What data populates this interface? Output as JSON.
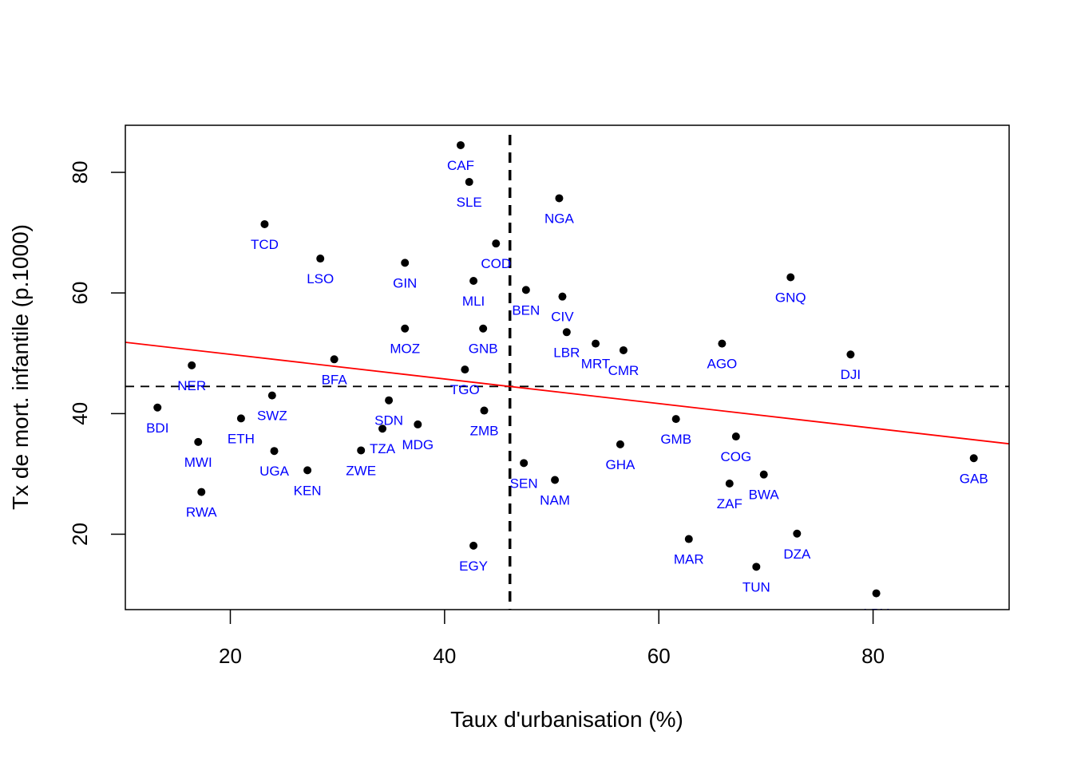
{
  "chart_data": {
    "type": "scatter",
    "title": "",
    "xlabel": "Taux d'urbanisation (%)",
    "ylabel": "Tx de mort. infantile (p.1000)",
    "xlim": [
      10.2,
      92.7
    ],
    "ylim": [
      7.5,
      87.8
    ],
    "xticks": [
      20,
      40,
      60,
      80
    ],
    "yticks": [
      20,
      40,
      60,
      80
    ],
    "grid": false,
    "colors": {
      "points": "#000000",
      "labels": "#0000ff",
      "regression": "#ff0000",
      "reference": "#000000"
    },
    "reference_lines": {
      "x_mean": 46.1,
      "y_mean": 44.5
    },
    "regression_line": {
      "intercept": 53.9,
      "slope": -0.204
    },
    "points": [
      {
        "label": "CAF",
        "x": 41.5,
        "y": 84.5
      },
      {
        "label": "SLE",
        "x": 42.3,
        "y": 78.4
      },
      {
        "label": "NGA",
        "x": 50.7,
        "y": 75.7
      },
      {
        "label": "TCD",
        "x": 23.2,
        "y": 71.4
      },
      {
        "label": "COD",
        "x": 44.8,
        "y": 68.2
      },
      {
        "label": "LSO",
        "x": 28.4,
        "y": 65.7
      },
      {
        "label": "GIN",
        "x": 36.3,
        "y": 65.0
      },
      {
        "label": "GNQ",
        "x": 72.3,
        "y": 62.6
      },
      {
        "label": "MLI",
        "x": 42.7,
        "y": 62.0
      },
      {
        "label": "BEN",
        "x": 47.6,
        "y": 60.5
      },
      {
        "label": "CIV",
        "x": 51.0,
        "y": 59.4
      },
      {
        "label": "MOZ",
        "x": 36.3,
        "y": 54.1
      },
      {
        "label": "GNB",
        "x": 43.6,
        "y": 54.1
      },
      {
        "label": "LBR",
        "x": 51.4,
        "y": 53.5
      },
      {
        "label": "MRT",
        "x": 54.1,
        "y": 51.6
      },
      {
        "label": "AGO",
        "x": 65.9,
        "y": 51.6
      },
      {
        "label": "CMR",
        "x": 56.7,
        "y": 50.5
      },
      {
        "label": "DJI",
        "x": 77.9,
        "y": 49.8
      },
      {
        "label": "BFA",
        "x": 29.7,
        "y": 49.0
      },
      {
        "label": "NER",
        "x": 16.4,
        "y": 48.0
      },
      {
        "label": "TGO",
        "x": 41.9,
        "y": 47.3
      },
      {
        "label": "SWZ",
        "x": 23.9,
        "y": 43.0
      },
      {
        "label": "SDN",
        "x": 34.8,
        "y": 42.2
      },
      {
        "label": "BDI",
        "x": 13.2,
        "y": 41.0
      },
      {
        "label": "ZMB",
        "x": 43.7,
        "y": 40.5
      },
      {
        "label": "ETH",
        "x": 21.0,
        "y": 39.2
      },
      {
        "label": "GMB",
        "x": 61.6,
        "y": 39.1
      },
      {
        "label": "MDG",
        "x": 37.5,
        "y": 38.2
      },
      {
        "label": "TZA",
        "x": 34.2,
        "y": 37.5
      },
      {
        "label": "COG",
        "x": 67.2,
        "y": 36.2
      },
      {
        "label": "MWI",
        "x": 17.0,
        "y": 35.3
      },
      {
        "label": "GHA",
        "x": 56.4,
        "y": 34.9
      },
      {
        "label": "UGA",
        "x": 24.1,
        "y": 33.8
      },
      {
        "label": "ZWE",
        "x": 32.2,
        "y": 33.9
      },
      {
        "label": "GAB",
        "x": 89.4,
        "y": 32.6
      },
      {
        "label": "SEN",
        "x": 47.4,
        "y": 31.8
      },
      {
        "label": "KEN",
        "x": 27.2,
        "y": 30.6
      },
      {
        "label": "BWA",
        "x": 69.8,
        "y": 29.9
      },
      {
        "label": "NAM",
        "x": 50.3,
        "y": 29.0
      },
      {
        "label": "ZAF",
        "x": 66.6,
        "y": 28.4
      },
      {
        "label": "RWA",
        "x": 17.3,
        "y": 27.0
      },
      {
        "label": "DZA",
        "x": 72.9,
        "y": 20.1
      },
      {
        "label": "MAR",
        "x": 62.8,
        "y": 19.2
      },
      {
        "label": "EGY",
        "x": 42.7,
        "y": 18.1
      },
      {
        "label": "TUN",
        "x": 69.1,
        "y": 14.6
      },
      {
        "label": "LBY",
        "x": 80.3,
        "y": 10.2
      }
    ]
  }
}
